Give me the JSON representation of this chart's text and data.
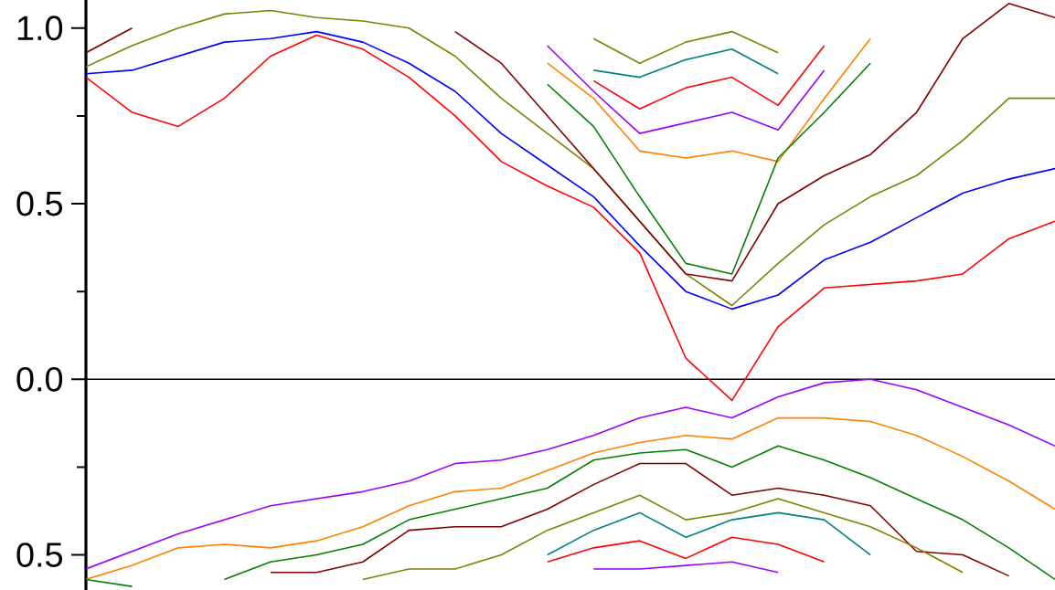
{
  "chart_data": {
    "type": "line",
    "categories": [
      null,
      null,
      null,
      null,
      null,
      null,
      null,
      null,
      null,
      null,
      null,
      null,
      null,
      null,
      null,
      null,
      null,
      null,
      null,
      null,
      null,
      null
    ],
    "ylim": [
      -0.6,
      1.08
    ],
    "yticks": [
      {
        "value": -0.5,
        "label": "0.5"
      },
      {
        "value": 0,
        "label": "0.0"
      },
      {
        "value": 0.5,
        "label": "0.5"
      },
      {
        "value": 1,
        "label": "1.0"
      }
    ],
    "tick_labels": "y",
    "ref_lines": [
      {
        "axis": "y",
        "value": 0,
        "color": "#000000"
      }
    ],
    "series": [
      {
        "color": "#ff0000",
        "values": [
          0.86,
          0.76,
          0.72,
          0.8,
          0.92,
          0.98,
          0.94,
          0.86,
          0.75,
          0.62,
          0.55,
          0.49,
          0.36,
          0.06,
          -0.06,
          0.15,
          0.26,
          0.27,
          0.28,
          0.3,
          0.4,
          0.45
        ]
      },
      {
        "color": "#0000ff",
        "values": [
          0.87,
          0.88,
          0.92,
          0.96,
          0.97,
          0.99,
          0.96,
          0.9,
          0.82,
          0.7,
          0.61,
          0.52,
          0.38,
          0.25,
          0.2,
          0.24,
          0.34,
          0.39,
          0.46,
          0.53,
          0.57,
          0.6
        ]
      },
      {
        "color": "#808000",
        "values": [
          0.89,
          0.95,
          1.0,
          1.04,
          1.05,
          1.03,
          1.02,
          1.0,
          0.92,
          0.8,
          0.7,
          0.6,
          0.45,
          0.3,
          0.21,
          0.33,
          0.44,
          0.52,
          0.58,
          0.68,
          0.8,
          0.8
        ]
      },
      {
        "color": "#800000",
        "values": [
          0.93,
          1.0,
          null,
          null,
          null,
          null,
          null,
          null,
          0.99,
          0.9,
          0.75,
          0.6,
          0.45,
          0.3,
          0.28,
          0.5,
          0.58,
          0.64,
          0.76,
          0.97,
          1.07,
          1.03
        ]
      },
      {
        "color": "#808000",
        "values": [
          null,
          null,
          null,
          null,
          null,
          null,
          null,
          null,
          null,
          null,
          null,
          0.97,
          0.9,
          0.96,
          0.99,
          0.93,
          null,
          null,
          null,
          null,
          null,
          null
        ]
      },
      {
        "color": "#008080",
        "values": [
          null,
          null,
          null,
          null,
          null,
          null,
          null,
          null,
          null,
          null,
          null,
          0.88,
          0.86,
          0.91,
          0.94,
          0.87,
          null,
          null,
          null,
          null,
          null,
          null
        ]
      },
      {
        "color": "#ff0000",
        "values": [
          null,
          null,
          null,
          null,
          null,
          null,
          null,
          null,
          null,
          null,
          null,
          0.85,
          0.77,
          0.83,
          0.86,
          0.78,
          0.95,
          null,
          null,
          null,
          null,
          null
        ]
      },
      {
        "color": "#9900ff",
        "values": [
          null,
          null,
          null,
          null,
          null,
          null,
          null,
          null,
          null,
          null,
          0.95,
          0.82,
          0.7,
          0.73,
          0.76,
          0.71,
          0.88,
          null,
          null,
          null,
          null,
          null
        ]
      },
      {
        "color": "#ff8000",
        "values": [
          null,
          null,
          null,
          null,
          null,
          null,
          null,
          null,
          null,
          null,
          0.9,
          0.8,
          0.65,
          0.63,
          0.65,
          0.62,
          0.8,
          0.97,
          null,
          null,
          null,
          null
        ]
      },
      {
        "color": "#008000",
        "values": [
          null,
          null,
          null,
          null,
          null,
          null,
          null,
          null,
          null,
          null,
          0.84,
          0.72,
          0.52,
          0.33,
          0.3,
          0.63,
          0.76,
          0.9,
          null,
          null,
          null,
          null
        ]
      },
      {
        "color": "#9900ff",
        "values": [
          -0.54,
          -0.49,
          -0.44,
          -0.4,
          -0.36,
          -0.34,
          -0.32,
          -0.29,
          -0.24,
          -0.23,
          -0.2,
          -0.16,
          -0.11,
          -0.08,
          -0.11,
          -0.05,
          -0.01,
          0.0,
          -0.03,
          -0.08,
          -0.13,
          -0.19
        ]
      },
      {
        "color": "#ff8000",
        "values": [
          -0.57,
          -0.53,
          -0.48,
          -0.47,
          -0.48,
          -0.46,
          -0.42,
          -0.36,
          -0.32,
          -0.31,
          -0.26,
          -0.21,
          -0.18,
          -0.16,
          -0.17,
          -0.11,
          -0.11,
          -0.12,
          -0.16,
          -0.22,
          -0.29,
          -0.37
        ]
      },
      {
        "color": "#008000",
        "values": [
          -0.57,
          -0.59,
          null,
          -0.57,
          -0.52,
          -0.5,
          -0.47,
          -0.4,
          -0.37,
          -0.34,
          -0.31,
          -0.23,
          -0.21,
          -0.2,
          -0.25,
          -0.19,
          -0.23,
          -0.28,
          -0.34,
          -0.4,
          -0.48,
          -0.57
        ]
      },
      {
        "color": "#800000",
        "values": [
          null,
          null,
          null,
          null,
          -0.55,
          -0.55,
          -0.52,
          -0.43,
          -0.42,
          -0.42,
          -0.37,
          -0.3,
          -0.24,
          -0.24,
          -0.33,
          -0.31,
          -0.33,
          -0.36,
          -0.49,
          -0.5,
          -0.56,
          null
        ]
      },
      {
        "color": "#808000",
        "values": [
          null,
          null,
          null,
          null,
          null,
          null,
          -0.57,
          -0.54,
          -0.54,
          -0.5,
          -0.43,
          -0.38,
          -0.33,
          -0.4,
          -0.38,
          -0.34,
          -0.38,
          -0.42,
          -0.48,
          -0.55,
          null,
          null
        ]
      },
      {
        "color": "#008080",
        "values": [
          null,
          null,
          null,
          null,
          null,
          null,
          null,
          null,
          null,
          null,
          -0.5,
          -0.43,
          -0.38,
          -0.45,
          -0.4,
          -0.38,
          -0.4,
          -0.5,
          null,
          null,
          null,
          null
        ]
      },
      {
        "color": "#ff0000",
        "values": [
          null,
          null,
          null,
          null,
          null,
          null,
          null,
          null,
          null,
          null,
          -0.52,
          -0.48,
          -0.46,
          -0.51,
          -0.45,
          -0.47,
          -0.52,
          null,
          null,
          null,
          null,
          null
        ]
      },
      {
        "color": "#9900ff",
        "values": [
          null,
          null,
          null,
          null,
          null,
          null,
          null,
          null,
          null,
          null,
          null,
          -0.54,
          -0.54,
          -0.53,
          -0.52,
          -0.55,
          null,
          null,
          null,
          null,
          null,
          null
        ]
      }
    ]
  }
}
